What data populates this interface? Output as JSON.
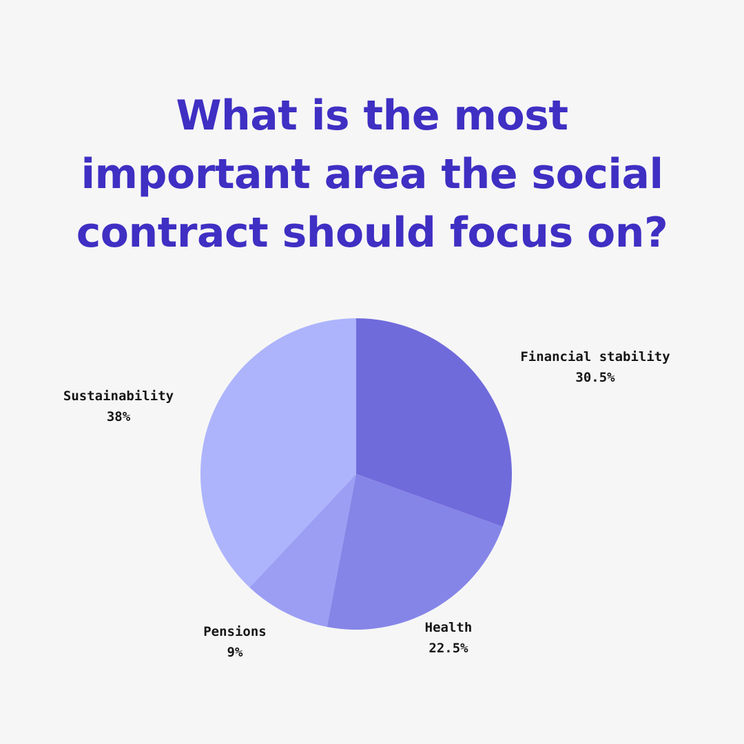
{
  "title": "What is the most important area the social contract should focus on?",
  "chart_data": {
    "type": "pie",
    "title": "What is the most important area the social contract should focus on?",
    "slices": [
      {
        "name": "Financial stability",
        "value": 30.5,
        "label": "30.5%",
        "color": "#706bdb"
      },
      {
        "name": "Health",
        "value": 22.5,
        "label": "22.5%",
        "color": "#8585e8"
      },
      {
        "name": "Pensions",
        "value": 9,
        "label": "9%",
        "color": "#9b9ef3"
      },
      {
        "name": "Sustainability",
        "value": 38,
        "label": "38%",
        "color": "#adb4fc"
      }
    ],
    "start_angle": "12 o'clock",
    "direction": "clockwise",
    "legend": "none (labels next to slices)"
  }
}
